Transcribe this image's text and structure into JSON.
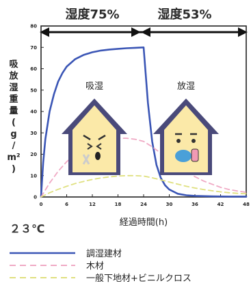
{
  "chart_data": {
    "type": "line",
    "phases": [
      "湿度75%",
      "湿度53%"
    ],
    "x_label": "経過時間(h)",
    "y_label": "吸放湿重量(g/m²)",
    "y_label_chars": [
      "吸",
      "放",
      "湿",
      "重",
      "量",
      "(",
      "g",
      "/",
      "m²",
      ")"
    ],
    "temperature": "２３℃",
    "x_ticks": [
      0,
      6,
      12,
      18,
      24,
      30,
      36,
      42,
      48
    ],
    "y_ticks": [
      0,
      10,
      20,
      30,
      40,
      50,
      60,
      70,
      80
    ],
    "xlim": [
      0,
      48
    ],
    "ylim": [
      0,
      80
    ],
    "series": [
      {
        "name": "調湿建材",
        "color": "#3a55b5",
        "style": "solid",
        "x": [
          0,
          0.5,
          1,
          2,
          3,
          4,
          5,
          6,
          8,
          10,
          12,
          14,
          16,
          18,
          20,
          22,
          24,
          25,
          26,
          27,
          28,
          29,
          30,
          32,
          34,
          36,
          40,
          44,
          48
        ],
        "y": [
          0,
          16,
          27,
          40,
          48,
          54,
          58,
          61,
          64.5,
          66.5,
          67.7,
          68.5,
          69,
          69.3,
          69.6,
          69.8,
          70,
          44,
          26,
          15,
          9,
          5.5,
          3.5,
          1.5,
          0.8,
          0.5,
          0.3,
          0.2,
          0.2
        ]
      },
      {
        "name": "木材",
        "color": "#f0a9c4",
        "style": "dashed",
        "x": [
          0,
          2,
          4,
          6,
          8,
          10,
          12,
          14,
          16,
          18,
          20,
          22,
          24,
          26,
          28,
          30,
          32,
          34,
          36,
          38,
          40,
          42,
          44,
          46,
          48
        ],
        "y": [
          0,
          6.5,
          12,
          16.5,
          20,
          22.5,
          24.5,
          26,
          27,
          27.5,
          27.5,
          27,
          26,
          23.5,
          20.5,
          17.5,
          14.5,
          12,
          9.5,
          7.5,
          6,
          4.5,
          3.5,
          2.8,
          2.2
        ]
      },
      {
        "name": "一般下地材+ビニルクロス",
        "color": "#dfe07e",
        "style": "dashed",
        "x": [
          0,
          2,
          4,
          6,
          8,
          10,
          12,
          14,
          16,
          18,
          20,
          22,
          24,
          26,
          28,
          30,
          32,
          34,
          36,
          38,
          40,
          42,
          44,
          46,
          48
        ],
        "y": [
          0,
          2,
          3.6,
          5,
          6.3,
          7.3,
          8.2,
          8.9,
          9.4,
          9.8,
          10,
          10,
          9.8,
          9,
          8,
          7,
          6,
          5,
          4.2,
          3.5,
          2.9,
          2.4,
          2,
          1.7,
          1.5
        ]
      }
    ],
    "annotations": [
      "吸湿",
      "放湿"
    ],
    "legend_position": "bottom"
  },
  "colors": {
    "house_wall": "#fbe9a8",
    "house_outline": "#4a4a7a",
    "house_roof": "#4a4a7a",
    "arrow": "#111111"
  }
}
